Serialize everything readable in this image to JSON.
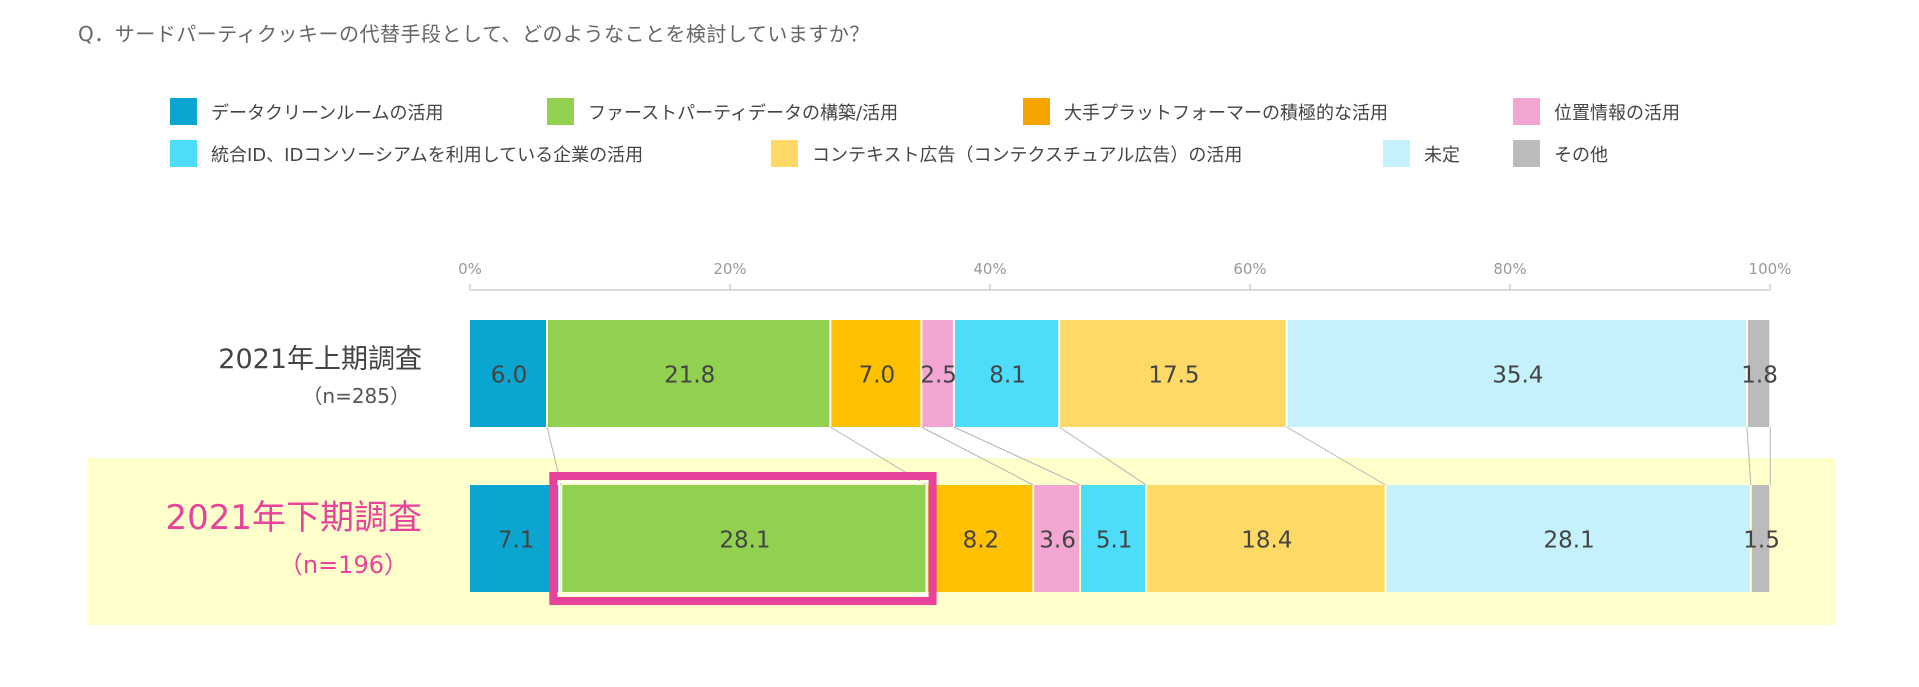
{
  "question": "Q．サードパーティクッキーの代替手段として、どのようなことを検討していますか？",
  "legend": [
    {
      "label": "データクリーンルームの活用",
      "color": "#0aa6cf"
    },
    {
      "label": "ファーストパーティデータの構築/活用",
      "color": "#92d050"
    },
    {
      "label": "大手プラットフォーマーの積極的な活用",
      "color": "#f6a400"
    },
    {
      "label": "位置情報の活用",
      "color": "#f4a6d3"
    },
    {
      "label": "統合ID、IDコンソーシアムを利用している企業の活用",
      "color": "#4ddcfa"
    },
    {
      "label": "コンテキスト広告（コンテクスチュアル広告）の活用",
      "color": "#ffd966"
    },
    {
      "label": "未定",
      "color": "#c4f1fc"
    },
    {
      "label": "その他",
      "color": "#bbbbbb"
    }
  ],
  "rows": [
    {
      "title": "2021年上期調査",
      "n": "（n=285）"
    },
    {
      "title": "2021年下期調査",
      "n": "（n=196）"
    }
  ],
  "chart_data": {
    "type": "bar",
    "orientation": "horizontal",
    "stacked": true,
    "percent_stacked": true,
    "title": "",
    "xlim": [
      0,
      100
    ],
    "x_ticks": [
      "0%",
      "20%",
      "40%",
      "60%",
      "80%",
      "100%"
    ],
    "categories": [
      "2021年上期調査",
      "2021年下期調査"
    ],
    "series": [
      {
        "name": "データクリーンルームの活用",
        "values": [
          6.0,
          7.1
        ],
        "labels": [
          "6.0",
          "7.1"
        ],
        "color": "#0aa6cf"
      },
      {
        "name": "ファーストパーティデータの構築/活用",
        "values": [
          21.8,
          28.1
        ],
        "labels": [
          "21.8",
          "28.1"
        ],
        "color": "#92d050"
      },
      {
        "name": "大手プラットフォーマーの積極的な活用",
        "values": [
          7.0,
          8.2
        ],
        "labels": [
          "7.0",
          "8.2"
        ],
        "color": "#ffc000"
      },
      {
        "name": "位置情報の活用",
        "values": [
          2.5,
          3.6
        ],
        "labels": [
          "2.5",
          "3.6"
        ],
        "color": "#f4a6d3"
      },
      {
        "name": "統合ID、IDコンソーシアムを利用している企業の活用",
        "values": [
          8.1,
          5.1
        ],
        "labels": [
          "8.1",
          "5.1"
        ],
        "color": "#4ddcfa"
      },
      {
        "name": "コンテキスト広告（コンテクスチュアル広告）の活用",
        "values": [
          17.5,
          18.4
        ],
        "labels": [
          "17.5",
          "18.4"
        ],
        "color": "#ffd966"
      },
      {
        "name": "未定",
        "values": [
          35.4,
          28.1
        ],
        "labels": [
          "35.4",
          "28.1"
        ],
        "color": "#c4f1fc"
      },
      {
        "name": "その他",
        "values": [
          1.8,
          1.5
        ],
        "labels": [
          "1.8",
          "1.5"
        ],
        "color": "#bbbbbb"
      }
    ],
    "highlight": {
      "row": 1,
      "series": 1,
      "color": "#e8439a"
    },
    "highlight_row_background": "#ffffcc"
  }
}
